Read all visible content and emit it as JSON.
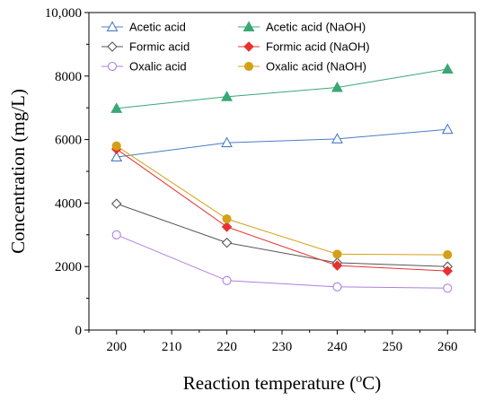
{
  "chart_data": {
    "type": "line",
    "title": "",
    "xlabel": "Reaction temperature (",
    "xlabel_sup": "o",
    "xlabel_tail": "C)",
    "ylabel": "Concentration (mg/L)",
    "xlim": [
      195,
      265
    ],
    "ylim": [
      0,
      10000
    ],
    "xticks": [
      200,
      210,
      220,
      230,
      240,
      250,
      260
    ],
    "yticks": [
      0,
      2000,
      4000,
      6000,
      8000,
      10000
    ],
    "ytick_labels": [
      "0",
      "2000",
      "4000",
      "6000",
      "8000",
      "10,000"
    ],
    "grid": false,
    "legend_position": "top-left",
    "x": [
      200,
      220,
      240,
      260
    ],
    "series": [
      {
        "name": "Acetic acid",
        "values": [
          5450,
          5900,
          6020,
          6320
        ],
        "color": "#4a7cc8",
        "marker": "triangle",
        "filled": false
      },
      {
        "name": "Acetic acid (NaOH)",
        "values": [
          6980,
          7350,
          7640,
          8220
        ],
        "color": "#3aa874",
        "marker": "triangle",
        "filled": true
      },
      {
        "name": "Formic acid",
        "values": [
          3980,
          2750,
          2120,
          2000
        ],
        "color": "#555555",
        "marker": "diamond",
        "filled": false
      },
      {
        "name": "Formic acid (NaOH)",
        "values": [
          5700,
          3250,
          2030,
          1860
        ],
        "color": "#e8312f",
        "marker": "diamond",
        "filled": true
      },
      {
        "name": "Oxalic acid",
        "values": [
          3000,
          1560,
          1360,
          1320
        ],
        "color": "#b07ee0",
        "marker": "circle",
        "filled": false
      },
      {
        "name": "Oxalic acid (NaOH)",
        "values": [
          5800,
          3500,
          2390,
          2370
        ],
        "color": "#d4a017",
        "marker": "circle",
        "filled": true
      }
    ]
  }
}
